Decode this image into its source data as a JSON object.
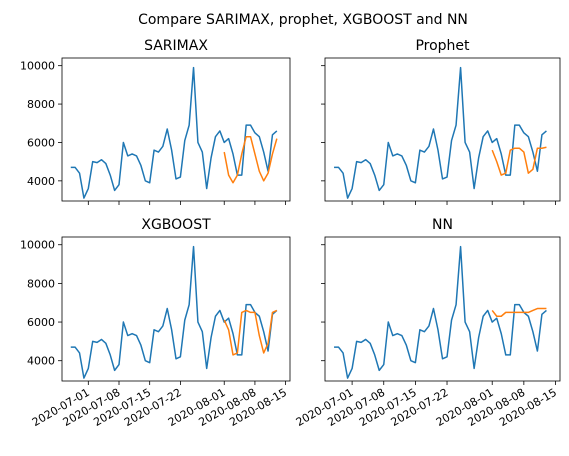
{
  "title": "Compare SARIMAX, prophet, XGBOOST and NN",
  "chart_data": [
    {
      "type": "line",
      "title": "SARIMAX",
      "x": [
        "2020-06-27",
        "2020-06-28",
        "2020-06-29",
        "2020-06-30",
        "2020-07-01",
        "2020-07-02",
        "2020-07-03",
        "2020-07-04",
        "2020-07-05",
        "2020-07-06",
        "2020-07-07",
        "2020-07-08",
        "2020-07-09",
        "2020-07-10",
        "2020-07-11",
        "2020-07-12",
        "2020-07-13",
        "2020-07-14",
        "2020-07-15",
        "2020-07-16",
        "2020-07-17",
        "2020-07-18",
        "2020-07-19",
        "2020-07-20",
        "2020-07-21",
        "2020-07-22",
        "2020-07-23",
        "2020-07-24",
        "2020-07-25",
        "2020-07-26",
        "2020-07-27",
        "2020-07-28",
        "2020-07-29",
        "2020-07-30",
        "2020-07-31",
        "2020-08-01",
        "2020-08-02",
        "2020-08-03",
        "2020-08-04",
        "2020-08-05",
        "2020-08-06",
        "2020-08-07",
        "2020-08-08",
        "2020-08-09",
        "2020-08-10",
        "2020-08-11",
        "2020-08-12",
        "2020-08-13"
      ],
      "series": [
        {
          "color": "#1f77b4",
          "values": [
            4700,
            4700,
            4400,
            3100,
            3600,
            5000,
            4950,
            5100,
            4900,
            4300,
            3500,
            3800,
            6000,
            5300,
            5400,
            5300,
            4800,
            4000,
            3900,
            5600,
            5500,
            5800,
            6700,
            5600,
            4100,
            4200,
            6100,
            6900,
            9900,
            6000,
            5500,
            3600,
            5200,
            6300,
            6600,
            6000,
            6200,
            5400,
            4300,
            4300,
            6900,
            6900,
            6500,
            6300,
            5500,
            4500,
            6400,
            6600
          ]
        },
        {
          "color": "#ff7f0e",
          "values": [
            null,
            null,
            null,
            null,
            null,
            null,
            null,
            null,
            null,
            null,
            null,
            null,
            null,
            null,
            null,
            null,
            null,
            null,
            null,
            null,
            null,
            null,
            null,
            null,
            null,
            null,
            null,
            null,
            null,
            null,
            null,
            null,
            null,
            null,
            null,
            5500,
            4300,
            3900,
            4300,
            5400,
            6300,
            6300,
            5400,
            4500,
            4000,
            4400,
            5400,
            6200
          ]
        }
      ],
      "xlim": [
        "2020-06-25",
        "2020-08-16"
      ],
      "xticks": [
        "2020-07-01",
        "2020-07-08",
        "2020-07-15",
        "2020-07-22",
        "2020-08-01",
        "2020-08-08",
        "2020-08-15"
      ],
      "ylim": [
        2950,
        10400
      ],
      "yticks": [
        4000,
        6000,
        8000,
        10000
      ]
    },
    {
      "type": "line",
      "title": "Prophet",
      "x": [
        "2020-06-27",
        "2020-06-28",
        "2020-06-29",
        "2020-06-30",
        "2020-07-01",
        "2020-07-02",
        "2020-07-03",
        "2020-07-04",
        "2020-07-05",
        "2020-07-06",
        "2020-07-07",
        "2020-07-08",
        "2020-07-09",
        "2020-07-10",
        "2020-07-11",
        "2020-07-12",
        "2020-07-13",
        "2020-07-14",
        "2020-07-15",
        "2020-07-16",
        "2020-07-17",
        "2020-07-18",
        "2020-07-19",
        "2020-07-20",
        "2020-07-21",
        "2020-07-22",
        "2020-07-23",
        "2020-07-24",
        "2020-07-25",
        "2020-07-26",
        "2020-07-27",
        "2020-07-28",
        "2020-07-29",
        "2020-07-30",
        "2020-07-31",
        "2020-08-01",
        "2020-08-02",
        "2020-08-03",
        "2020-08-04",
        "2020-08-05",
        "2020-08-06",
        "2020-08-07",
        "2020-08-08",
        "2020-08-09",
        "2020-08-10",
        "2020-08-11",
        "2020-08-12",
        "2020-08-13"
      ],
      "series": [
        {
          "color": "#1f77b4",
          "values": [
            4700,
            4700,
            4400,
            3100,
            3600,
            5000,
            4950,
            5100,
            4900,
            4300,
            3500,
            3800,
            6000,
            5300,
            5400,
            5300,
            4800,
            4000,
            3900,
            5600,
            5500,
            5800,
            6700,
            5600,
            4100,
            4200,
            6100,
            6900,
            9900,
            6000,
            5500,
            3600,
            5200,
            6300,
            6600,
            6000,
            6200,
            5400,
            4300,
            4300,
            6900,
            6900,
            6500,
            6300,
            5500,
            4500,
            6400,
            6600
          ]
        },
        {
          "color": "#ff7f0e",
          "values": [
            null,
            null,
            null,
            null,
            null,
            null,
            null,
            null,
            null,
            null,
            null,
            null,
            null,
            null,
            null,
            null,
            null,
            null,
            null,
            null,
            null,
            null,
            null,
            null,
            null,
            null,
            null,
            null,
            null,
            null,
            null,
            null,
            null,
            null,
            null,
            5600,
            5000,
            4300,
            4400,
            5600,
            5700,
            5700,
            5500,
            4400,
            4600,
            5700,
            5700,
            5750
          ]
        }
      ],
      "xlim": [
        "2020-06-25",
        "2020-08-16"
      ],
      "xticks": [
        "2020-07-01",
        "2020-07-08",
        "2020-07-15",
        "2020-07-22",
        "2020-08-01",
        "2020-08-08",
        "2020-08-15"
      ],
      "ylim": [
        2950,
        10400
      ],
      "yticks": [
        4000,
        6000,
        8000,
        10000
      ]
    },
    {
      "type": "line",
      "title": "XGBOOST",
      "x": [
        "2020-06-27",
        "2020-06-28",
        "2020-06-29",
        "2020-06-30",
        "2020-07-01",
        "2020-07-02",
        "2020-07-03",
        "2020-07-04",
        "2020-07-05",
        "2020-07-06",
        "2020-07-07",
        "2020-07-08",
        "2020-07-09",
        "2020-07-10",
        "2020-07-11",
        "2020-07-12",
        "2020-07-13",
        "2020-07-14",
        "2020-07-15",
        "2020-07-16",
        "2020-07-17",
        "2020-07-18",
        "2020-07-19",
        "2020-07-20",
        "2020-07-21",
        "2020-07-22",
        "2020-07-23",
        "2020-07-24",
        "2020-07-25",
        "2020-07-26",
        "2020-07-27",
        "2020-07-28",
        "2020-07-29",
        "2020-07-30",
        "2020-07-31",
        "2020-08-01",
        "2020-08-02",
        "2020-08-03",
        "2020-08-04",
        "2020-08-05",
        "2020-08-06",
        "2020-08-07",
        "2020-08-08",
        "2020-08-09",
        "2020-08-10",
        "2020-08-11",
        "2020-08-12",
        "2020-08-13"
      ],
      "series": [
        {
          "color": "#1f77b4",
          "values": [
            4700,
            4700,
            4400,
            3100,
            3600,
            5000,
            4950,
            5100,
            4900,
            4300,
            3500,
            3800,
            6000,
            5300,
            5400,
            5300,
            4800,
            4000,
            3900,
            5600,
            5500,
            5800,
            6700,
            5600,
            4100,
            4200,
            6100,
            6900,
            9900,
            6000,
            5500,
            3600,
            5200,
            6300,
            6600,
            6000,
            6200,
            5400,
            4300,
            4300,
            6900,
            6900,
            6500,
            6300,
            5500,
            4500,
            6400,
            6600
          ]
        },
        {
          "color": "#ff7f0e",
          "values": [
            null,
            null,
            null,
            null,
            null,
            null,
            null,
            null,
            null,
            null,
            null,
            null,
            null,
            null,
            null,
            null,
            null,
            null,
            null,
            null,
            null,
            null,
            null,
            null,
            null,
            null,
            null,
            null,
            null,
            null,
            null,
            null,
            null,
            null,
            null,
            6100,
            5600,
            4300,
            4400,
            6500,
            6600,
            6500,
            6500,
            5300,
            4400,
            4900,
            6500,
            6600
          ]
        }
      ],
      "xlim": [
        "2020-06-25",
        "2020-08-16"
      ],
      "xticks": [
        "2020-07-01",
        "2020-07-08",
        "2020-07-15",
        "2020-07-22",
        "2020-08-01",
        "2020-08-08",
        "2020-08-15"
      ],
      "ylim": [
        2950,
        10400
      ],
      "yticks": [
        4000,
        6000,
        8000,
        10000
      ]
    },
    {
      "type": "line",
      "title": "NN",
      "x": [
        "2020-06-27",
        "2020-06-28",
        "2020-06-29",
        "2020-06-30",
        "2020-07-01",
        "2020-07-02",
        "2020-07-03",
        "2020-07-04",
        "2020-07-05",
        "2020-07-06",
        "2020-07-07",
        "2020-07-08",
        "2020-07-09",
        "2020-07-10",
        "2020-07-11",
        "2020-07-12",
        "2020-07-13",
        "2020-07-14",
        "2020-07-15",
        "2020-07-16",
        "2020-07-17",
        "2020-07-18",
        "2020-07-19",
        "2020-07-20",
        "2020-07-21",
        "2020-07-22",
        "2020-07-23",
        "2020-07-24",
        "2020-07-25",
        "2020-07-26",
        "2020-07-27",
        "2020-07-28",
        "2020-07-29",
        "2020-07-30",
        "2020-07-31",
        "2020-08-01",
        "2020-08-02",
        "2020-08-03",
        "2020-08-04",
        "2020-08-05",
        "2020-08-06",
        "2020-08-07",
        "2020-08-08",
        "2020-08-09",
        "2020-08-10",
        "2020-08-11",
        "2020-08-12",
        "2020-08-13"
      ],
      "series": [
        {
          "color": "#1f77b4",
          "values": [
            4700,
            4700,
            4400,
            3100,
            3600,
            5000,
            4950,
            5100,
            4900,
            4300,
            3500,
            3800,
            6000,
            5300,
            5400,
            5300,
            4800,
            4000,
            3900,
            5600,
            5500,
            5800,
            6700,
            5600,
            4100,
            4200,
            6100,
            6900,
            9900,
            6000,
            5500,
            3600,
            5200,
            6300,
            6600,
            6000,
            6200,
            5400,
            4300,
            4300,
            6900,
            6900,
            6500,
            6300,
            5500,
            4500,
            6400,
            6600
          ]
        },
        {
          "color": "#ff7f0e",
          "values": [
            null,
            null,
            null,
            null,
            null,
            null,
            null,
            null,
            null,
            null,
            null,
            null,
            null,
            null,
            null,
            null,
            null,
            null,
            null,
            null,
            null,
            null,
            null,
            null,
            null,
            null,
            null,
            null,
            null,
            null,
            null,
            null,
            null,
            null,
            null,
            6600,
            6300,
            6300,
            6500,
            6500,
            6500,
            6500,
            6500,
            6500,
            6600,
            6700,
            6700,
            6700
          ]
        }
      ],
      "xlim": [
        "2020-06-25",
        "2020-08-16"
      ],
      "xticks": [
        "2020-07-01",
        "2020-07-08",
        "2020-07-15",
        "2020-07-22",
        "2020-08-01",
        "2020-08-08",
        "2020-08-15"
      ],
      "ylim": [
        2950,
        10400
      ],
      "yticks": [
        4000,
        6000,
        8000,
        10000
      ]
    }
  ]
}
